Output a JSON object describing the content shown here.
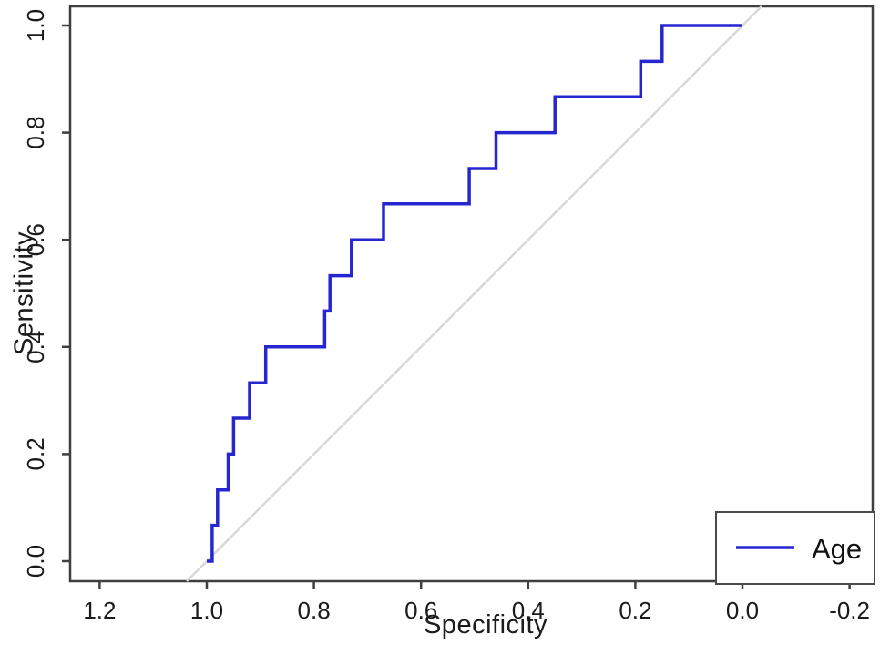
{
  "colors": {
    "background": "#ffffff",
    "axis_frame": "#3f3f3f",
    "tick_text": "#1b1b1b",
    "curve_blue": "#2626d0",
    "reference_gray": "#d8d8d8",
    "legend_border": "#4a4a4a"
  },
  "chart_data": {
    "type": "line",
    "subtype": "roc_step_curve",
    "title": "",
    "xlabel": "Specificity",
    "ylabel": "Sensitivity",
    "xlim": [
      1.2,
      -0.2
    ],
    "ylim": [
      0.0,
      1.0
    ],
    "x_axis_reversed": true,
    "grid": false,
    "x_ticks": [
      1.2,
      1.0,
      0.8,
      0.6,
      0.4,
      0.2,
      0.0,
      -0.2
    ],
    "x_tick_labels": [
      "1.2",
      "1.0",
      "0.8",
      "0.6",
      "0.4",
      "0.2",
      "0.0",
      "-0.2"
    ],
    "y_ticks": [
      0.0,
      0.2,
      0.4,
      0.6,
      0.8,
      1.0
    ],
    "y_tick_labels": [
      "0.0",
      "0.2",
      "0.4",
      "0.6",
      "0.8",
      "1.0"
    ],
    "series": [
      {
        "name": "Age",
        "color": "#2626d0",
        "line_width": 3.5,
        "points_specificity_sensitivity": [
          [
            1.0,
            0.0
          ],
          [
            0.99,
            0.0
          ],
          [
            0.99,
            0.067
          ],
          [
            0.98,
            0.067
          ],
          [
            0.98,
            0.133
          ],
          [
            0.96,
            0.133
          ],
          [
            0.96,
            0.2
          ],
          [
            0.95,
            0.2
          ],
          [
            0.95,
            0.267
          ],
          [
            0.92,
            0.267
          ],
          [
            0.92,
            0.333
          ],
          [
            0.89,
            0.333
          ],
          [
            0.89,
            0.4
          ],
          [
            0.78,
            0.4
          ],
          [
            0.78,
            0.467
          ],
          [
            0.77,
            0.467
          ],
          [
            0.77,
            0.533
          ],
          [
            0.73,
            0.533
          ],
          [
            0.73,
            0.6
          ],
          [
            0.67,
            0.6
          ],
          [
            0.67,
            0.667
          ],
          [
            0.51,
            0.667
          ],
          [
            0.51,
            0.733
          ],
          [
            0.46,
            0.733
          ],
          [
            0.46,
            0.8
          ],
          [
            0.35,
            0.8
          ],
          [
            0.35,
            0.867
          ],
          [
            0.19,
            0.867
          ],
          [
            0.19,
            0.933
          ],
          [
            0.15,
            0.933
          ],
          [
            0.15,
            1.0
          ],
          [
            0.0,
            1.0
          ]
        ]
      }
    ],
    "reference_line": {
      "name": "chance-diagonal",
      "color": "#d8d8d8",
      "from_specificity_sensitivity": [
        1.0,
        0.0
      ],
      "to_specificity_sensitivity": [
        0.0,
        1.0
      ],
      "extended_to_plot_edges": true
    },
    "legend": {
      "position": "bottom-right",
      "entries": [
        {
          "label": "Age",
          "color": "#2626d0",
          "marker": "line"
        }
      ]
    }
  }
}
